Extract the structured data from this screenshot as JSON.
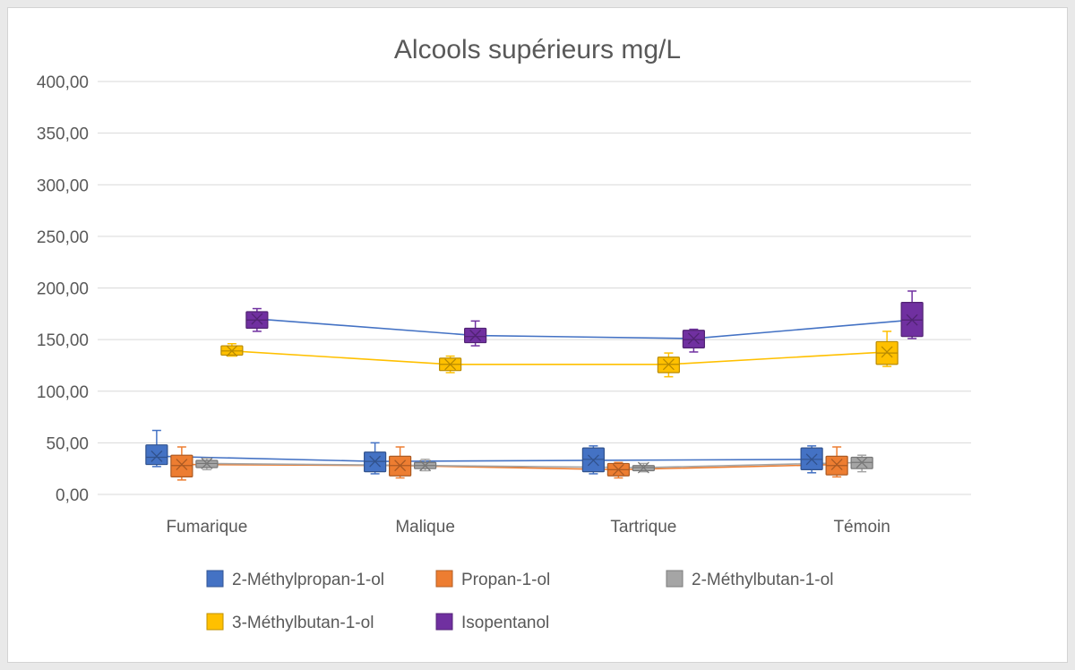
{
  "chart_data": {
    "type": "box",
    "title": "Alcools supérieurs mg/L",
    "xlabel": "",
    "ylabel": "",
    "categories": [
      "Fumarique",
      "Malique",
      "Tartrique",
      "Témoin"
    ],
    "ylim": [
      0,
      400
    ],
    "yticks": [
      "0,00",
      "50,00",
      "100,00",
      "150,00",
      "200,00",
      "250,00",
      "300,00",
      "350,00",
      "400,00"
    ],
    "yticks_values": [
      0,
      50,
      100,
      150,
      200,
      250,
      300,
      350,
      400
    ],
    "grid": true,
    "legend_position": "bottom",
    "series": [
      {
        "name": "2-Méthylpropan-1-ol",
        "color": "#4472c4",
        "boxes": [
          {
            "min": 27,
            "q1": 29,
            "median": 36,
            "q3": 48,
            "max": 62,
            "mean": 37
          },
          {
            "min": 20,
            "q1": 22,
            "median": 32,
            "q3": 41,
            "max": 50,
            "mean": 32
          },
          {
            "min": 20,
            "q1": 22,
            "median": 34,
            "q3": 45,
            "max": 47,
            "mean": 33
          },
          {
            "min": 21,
            "q1": 24,
            "median": 34,
            "q3": 45,
            "max": 47,
            "mean": 34
          }
        ]
      },
      {
        "name": "Propan-1-ol",
        "color": "#ed7d31",
        "boxes": [
          {
            "min": 14,
            "q1": 17,
            "median": 28,
            "q3": 38,
            "max": 46,
            "mean": 29
          },
          {
            "min": 16,
            "q1": 18,
            "median": 28,
            "q3": 37,
            "max": 46,
            "mean": 28
          },
          {
            "min": 16,
            "q1": 18,
            "median": 24,
            "q3": 30,
            "max": 31,
            "mean": 24
          },
          {
            "min": 17,
            "q1": 19,
            "median": 28,
            "q3": 37,
            "max": 46,
            "mean": 29
          }
        ]
      },
      {
        "name": "2-Méthylbutan-1-ol",
        "color": "#a5a5a5",
        "boxes": [
          {
            "min": 24,
            "q1": 26,
            "median": 30,
            "q3": 33,
            "max": 35,
            "mean": 30
          },
          {
            "min": 23,
            "q1": 25,
            "median": 28,
            "q3": 31,
            "max": 34,
            "mean": 28
          },
          {
            "min": 22,
            "q1": 23,
            "median": 26,
            "q3": 28,
            "max": 30,
            "mean": 26
          },
          {
            "min": 22,
            "q1": 25,
            "median": 31,
            "q3": 36,
            "max": 38,
            "mean": 31
          }
        ]
      },
      {
        "name": "3-Méthylbutan-1-ol",
        "color": "#ffc000",
        "boxes": [
          {
            "min": 134,
            "q1": 135,
            "median": 139,
            "q3": 144,
            "max": 146,
            "mean": 139
          },
          {
            "min": 118,
            "q1": 120,
            "median": 126,
            "q3": 132,
            "max": 134,
            "mean": 126
          },
          {
            "min": 114,
            "q1": 118,
            "median": 126,
            "q3": 133,
            "max": 137,
            "mean": 126
          },
          {
            "min": 124,
            "q1": 126,
            "median": 137,
            "q3": 148,
            "max": 158,
            "mean": 138
          }
        ]
      },
      {
        "name": "Isopentanol",
        "color": "#7030a0",
        "boxes": [
          {
            "min": 158,
            "q1": 161,
            "median": 169,
            "q3": 177,
            "max": 180,
            "mean": 170
          },
          {
            "min": 144,
            "q1": 147,
            "median": 153,
            "q3": 161,
            "max": 168,
            "mean": 154
          },
          {
            "min": 138,
            "q1": 142,
            "median": 150,
            "q3": 159,
            "max": 160,
            "mean": 151
          },
          {
            "min": 151,
            "q1": 153,
            "median": 169,
            "q3": 186,
            "max": 197,
            "mean": 169
          }
        ]
      }
    ]
  }
}
